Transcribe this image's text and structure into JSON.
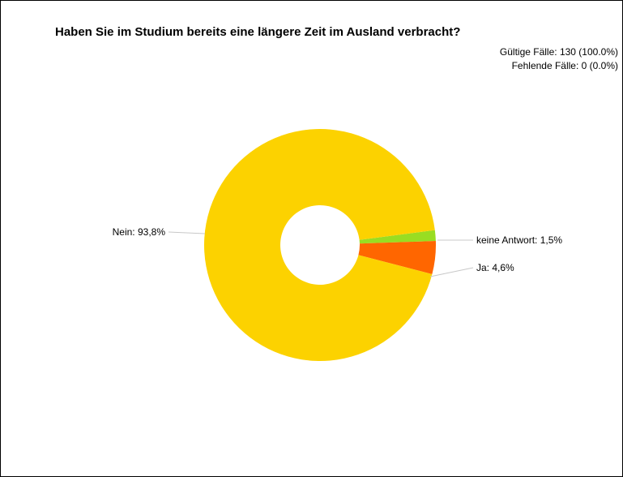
{
  "chart_data": {
    "type": "pie",
    "style": "donut",
    "title": "Haben Sie im Studium bereits eine längere Zeit im Ausland verbracht?",
    "valid_cases": "Gültige Fälle: 130 (100.0%)",
    "missing_cases": "Fehlende Fälle: 0 (0.0%)",
    "slices": [
      {
        "label": "keine Antwort",
        "value": 1.5,
        "display": "keine Antwort: 1,5%",
        "color": "#99dd22"
      },
      {
        "label": "Ja",
        "value": 4.6,
        "display": "Ja: 4,6%",
        "color": "#ff6600"
      },
      {
        "label": "Nein",
        "value": 93.8,
        "display": "Nein: 93,8%",
        "color": "#fcd200"
      }
    ]
  }
}
